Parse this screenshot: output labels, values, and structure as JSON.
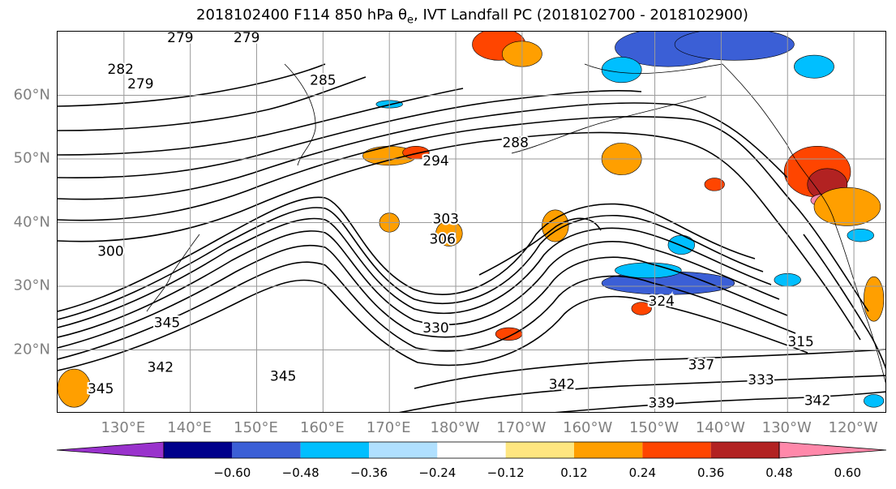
{
  "title": {
    "prefix": "2018102400 F114 850 hPa θ",
    "subscript": "e",
    "suffix": ", IVT Landfall PC (2018102700 - 2018102900)"
  },
  "map": {
    "projection": "cylindrical",
    "extent": {
      "lon_min": 120,
      "lon_max": 245,
      "lat_min": 10,
      "lat_max": 70
    },
    "grid": true,
    "lat_labels": [
      {
        "lat": 60,
        "label": "60°N"
      },
      {
        "lat": 50,
        "label": "50°N"
      },
      {
        "lat": 40,
        "label": "40°N"
      },
      {
        "lat": 30,
        "label": "30°N"
      },
      {
        "lat": 20,
        "label": "20°N"
      }
    ],
    "lon_labels": [
      {
        "lon": 130,
        "label": "130°E"
      },
      {
        "lon": 140,
        "label": "140°E"
      },
      {
        "lon": 150,
        "label": "150°E"
      },
      {
        "lon": 160,
        "label": "160°E"
      },
      {
        "lon": 170,
        "label": "170°E"
      },
      {
        "lon": 180,
        "label": "180°W"
      },
      {
        "lon": 190,
        "label": "170°W"
      },
      {
        "lon": 200,
        "label": "160°W"
      },
      {
        "lon": 210,
        "label": "150°W"
      },
      {
        "lon": 220,
        "label": "140°W"
      },
      {
        "lon": 230,
        "label": "130°W"
      },
      {
        "lon": 240,
        "label": "120°W"
      }
    ],
    "contour_labels": [
      {
        "text": "279",
        "lon": 138.5,
        "lat": 69
      },
      {
        "text": "279",
        "lon": 148.5,
        "lat": 69
      },
      {
        "text": "282",
        "lon": 129.5,
        "lat": 64
      },
      {
        "text": "279",
        "lon": 132.5,
        "lat": 61.7
      },
      {
        "text": "285",
        "lon": 160,
        "lat": 62.3
      },
      {
        "text": "288",
        "lon": 189,
        "lat": 52.5
      },
      {
        "text": "294",
        "lon": 177,
        "lat": 49.6
      },
      {
        "text": "303",
        "lon": 178.5,
        "lat": 40.5
      },
      {
        "text": "306",
        "lon": 178,
        "lat": 37.3
      },
      {
        "text": "324",
        "lon": 211,
        "lat": 27.6
      },
      {
        "text": "330",
        "lon": 177,
        "lat": 23.4
      },
      {
        "text": "345",
        "lon": 136.5,
        "lat": 24.2
      },
      {
        "text": "342",
        "lon": 135.5,
        "lat": 17.2
      },
      {
        "text": "345",
        "lon": 126.5,
        "lat": 13.8
      },
      {
        "text": "345",
        "lon": 154,
        "lat": 15.8
      },
      {
        "text": "342",
        "lon": 196,
        "lat": 14.5
      },
      {
        "text": "337",
        "lon": 217,
        "lat": 17.6
      },
      {
        "text": "333",
        "lon": 226,
        "lat": 15.2
      },
      {
        "text": "339",
        "lon": 211,
        "lat": 11.6
      },
      {
        "text": "342",
        "lon": 234.5,
        "lat": 12
      },
      {
        "text": "315",
        "lon": 232,
        "lat": 21.2
      },
      {
        "text": "300",
        "lon": 128,
        "lat": 35.4
      }
    ],
    "shading_patches": [
      {
        "lon": 186.5,
        "lat": 68,
        "rx": 4,
        "ry": 2.5,
        "color": "#ff4500"
      },
      {
        "lon": 190,
        "lat": 66.5,
        "rx": 3,
        "ry": 2,
        "color": "#ff9f00"
      },
      {
        "lon": 212,
        "lat": 67.5,
        "rx": 8,
        "ry": 3,
        "color": "#3b5fd6"
      },
      {
        "lon": 222,
        "lat": 68,
        "rx": 9,
        "ry": 2.5,
        "color": "#3b5fd6"
      },
      {
        "lon": 205,
        "lat": 64,
        "rx": 3,
        "ry": 2,
        "color": "#00bfff"
      },
      {
        "lon": 234,
        "lat": 64.5,
        "rx": 3,
        "ry": 1.8,
        "color": "#00bfff"
      },
      {
        "lon": 170,
        "lat": 50.5,
        "rx": 4,
        "ry": 1.5,
        "color": "#ff9f00"
      },
      {
        "lon": 174,
        "lat": 51,
        "rx": 2,
        "ry": 1,
        "color": "#ff4500"
      },
      {
        "lon": 205,
        "lat": 50,
        "rx": 3,
        "ry": 2.5,
        "color": "#ff9f00"
      },
      {
        "lon": 234.5,
        "lat": 48,
        "rx": 5,
        "ry": 4,
        "color": "#ff4500"
      },
      {
        "lon": 236,
        "lat": 46,
        "rx": 3,
        "ry": 2.5,
        "color": "#b22222"
      },
      {
        "lon": 235.5,
        "lat": 43.5,
        "rx": 2,
        "ry": 1,
        "color": "#ff88aa"
      },
      {
        "lon": 239,
        "lat": 42.5,
        "rx": 5,
        "ry": 3,
        "color": "#ff9f00"
      },
      {
        "lon": 212,
        "lat": 30.5,
        "rx": 10,
        "ry": 1.8,
        "color": "#3b5fd6"
      },
      {
        "lon": 209,
        "lat": 32.5,
        "rx": 5,
        "ry": 1.2,
        "color": "#00bfff"
      },
      {
        "lon": 179,
        "lat": 38.3,
        "rx": 2,
        "ry": 2,
        "color": "#ff9f00"
      },
      {
        "lon": 170,
        "lat": 40,
        "rx": 1.5,
        "ry": 1.5,
        "color": "#ff9f00"
      },
      {
        "lon": 195,
        "lat": 39.5,
        "rx": 2,
        "ry": 2.5,
        "color": "#ff9f00"
      },
      {
        "lon": 219,
        "lat": 46,
        "rx": 1.5,
        "ry": 1,
        "color": "#ff4500"
      },
      {
        "lon": 214,
        "lat": 36.5,
        "rx": 2,
        "ry": 1.5,
        "color": "#00bfff"
      },
      {
        "lon": 188,
        "lat": 22.5,
        "rx": 2,
        "ry": 1,
        "color": "#ff4500"
      },
      {
        "lon": 122.5,
        "lat": 14,
        "rx": 2.5,
        "ry": 3,
        "color": "#ff9f00"
      },
      {
        "lon": 243,
        "lat": 28,
        "rx": 1.5,
        "ry": 3.5,
        "color": "#ff9f00"
      },
      {
        "lon": 243,
        "lat": 12,
        "rx": 1.5,
        "ry": 1,
        "color": "#00bfff"
      },
      {
        "lon": 208,
        "lat": 26.5,
        "rx": 1.5,
        "ry": 1,
        "color": "#ff4500"
      },
      {
        "lon": 170,
        "lat": 58.6,
        "rx": 2,
        "ry": 0.6,
        "color": "#00bfff"
      },
      {
        "lon": 241,
        "lat": 38,
        "rx": 2,
        "ry": 1,
        "color": "#00bfff"
      },
      {
        "lon": 230,
        "lat": 31,
        "rx": 2,
        "ry": 1,
        "color": "#00bfff"
      }
    ]
  },
  "colorbar": {
    "colors": [
      "#9932cc",
      "#00008b",
      "#3b5fd6",
      "#00bfff",
      "#b0e0ff",
      "#ffffff",
      "#ffe680",
      "#ff9f00",
      "#ff4500",
      "#b22222",
      "#ff88aa"
    ],
    "ticks": [
      {
        "index": 1,
        "label": "−0.60"
      },
      {
        "index": 2,
        "label": "−0.48"
      },
      {
        "index": 3,
        "label": "−0.36"
      },
      {
        "index": 4,
        "label": "−0.24"
      },
      {
        "index": 5,
        "label": "−0.12"
      },
      {
        "index": 6,
        "label": "0.12"
      },
      {
        "index": 7,
        "label": "0.24"
      },
      {
        "index": 8,
        "label": "0.36"
      },
      {
        "index": 9,
        "label": "0.48"
      },
      {
        "index": 10,
        "label": "0.60"
      }
    ]
  }
}
